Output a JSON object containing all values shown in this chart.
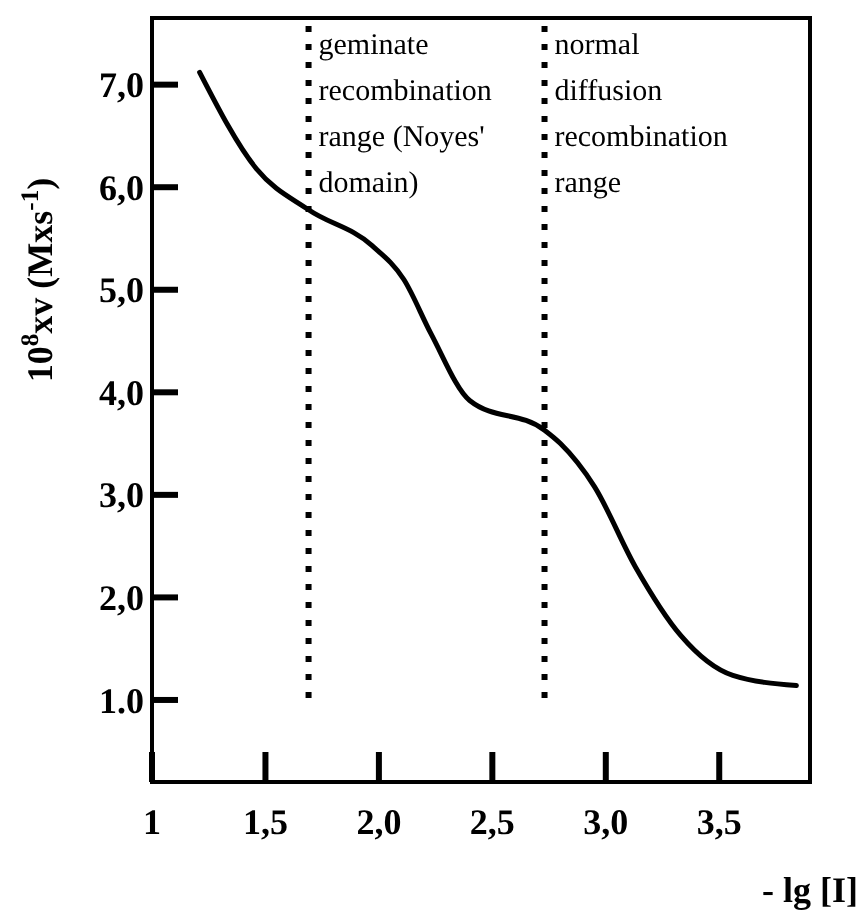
{
  "chart_data": {
    "type": "line",
    "xlabel": "- lg [I]",
    "ylabel": "10$^{8}$xv (Mxs$^{-1}$)",
    "x": [
      1.21,
      1.46,
      1.69,
      1.97,
      2.11,
      2.23,
      2.4,
      2.73,
      2.8,
      2.95,
      3.13,
      3.33,
      3.56,
      3.84
    ],
    "series": [
      {
        "color": "#000000",
        "values": [
          7.12,
          6.18,
          5.78,
          5.43,
          5.1,
          4.57,
          3.92,
          3.63,
          3.5,
          3.08,
          2.3,
          1.63,
          1.24,
          1.14
        ]
      }
    ],
    "xlim": [
      1,
      3.9
    ],
    "ylim": [
      0.2,
      7.65
    ],
    "xticks": [
      1,
      {
        "value": 1.5,
        "label": "1,5"
      },
      {
        "value": 2,
        "label": "2,0"
      },
      {
        "value": 2.5,
        "label": "2,5"
      },
      {
        "value": 3,
        "label": "3,0"
      },
      {
        "value": 3.5,
        "label": "3,5"
      }
    ],
    "yticks": [
      {
        "value": 1,
        "label": "1.0"
      },
      {
        "value": 2,
        "label": "2,0"
      },
      {
        "value": 3,
        "label": "3,0"
      },
      {
        "value": 4,
        "label": "4,0"
      },
      {
        "value": 5,
        "label": "5,0"
      },
      {
        "value": 6,
        "label": "6,0"
      },
      {
        "value": 7,
        "label": "7,0"
      }
    ],
    "ref_lines": [
      {
        "axis": "x",
        "value": 1.69,
        "label": "geminate\nrecombination\nrange (Noyes'\ndomain)",
        "line_style": "dotted"
      },
      {
        "axis": "x",
        "value": 2.73,
        "label": "normal\ndiffusion\nrecombination\nrange",
        "line_style": "dotted"
      }
    ],
    "grid": false,
    "marker": "none",
    "line_style": "solid"
  }
}
